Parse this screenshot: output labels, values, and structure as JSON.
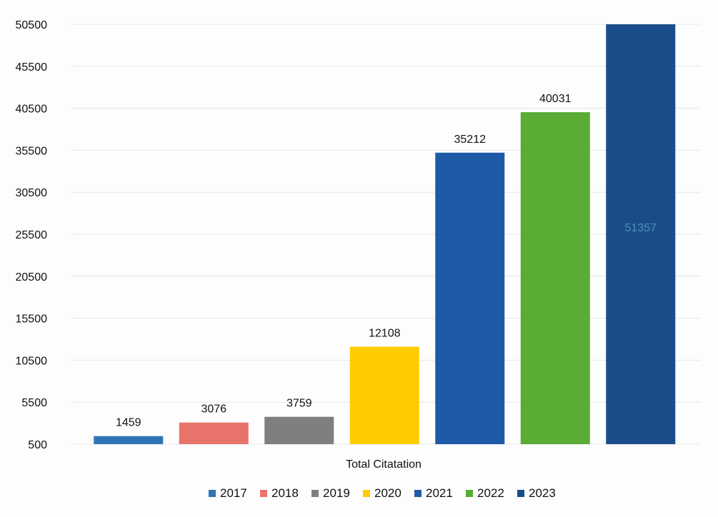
{
  "chart_data": {
    "type": "bar",
    "xlabel": "Total Citatation",
    "ylabel": "",
    "ylim": [
      500,
      50500
    ],
    "yticks": [
      500,
      5500,
      10500,
      15500,
      20500,
      25500,
      30500,
      35500,
      40500,
      45500,
      50500
    ],
    "grid": true,
    "legend_position": "bottom",
    "categories": [
      "Total Citatation"
    ],
    "series": [
      {
        "name": "2017",
        "values": [
          1459
        ],
        "color": "#2e75b6"
      },
      {
        "name": "2018",
        "values": [
          3076
        ],
        "color": "#e8736b"
      },
      {
        "name": "2019",
        "values": [
          3759
        ],
        "color": "#7f7f7f"
      },
      {
        "name": "2020",
        "values": [
          12108
        ],
        "color": "#ffcc00"
      },
      {
        "name": "2021",
        "values": [
          35212
        ],
        "color": "#1f5aa6"
      },
      {
        "name": "2022",
        "values": [
          40031
        ],
        "color": "#5aac34"
      },
      {
        "name": "2023",
        "values": [
          51357
        ],
        "color": "#1a4c8a"
      }
    ],
    "data_labels": [
      "1459",
      "3076",
      "3759",
      "12108",
      "35212",
      "40031",
      "51357"
    ]
  }
}
